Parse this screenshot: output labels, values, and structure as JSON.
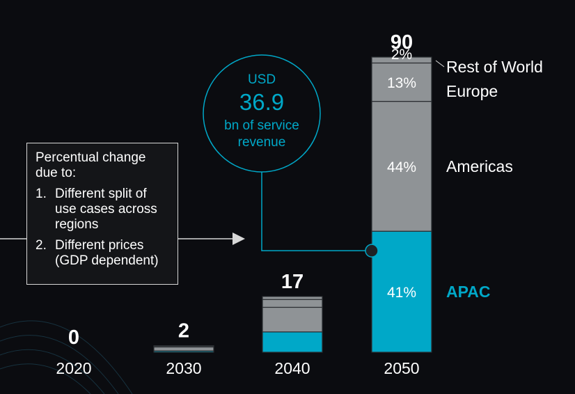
{
  "chart_data": {
    "type": "bar",
    "stacked": true,
    "categories": [
      "2020",
      "2030",
      "2040",
      "2050"
    ],
    "totals": [
      0,
      2,
      17,
      90
    ],
    "series": [
      {
        "name": "APAC",
        "color": "#00a8c8",
        "values": [
          0,
          0.4,
          6.2,
          36.9
        ]
      },
      {
        "name": "Americas",
        "color": "#8f9396",
        "values": [
          0,
          1.2,
          7.5,
          39.6
        ]
      },
      {
        "name": "Europe",
        "color": "#8f9396",
        "values": [
          0,
          0.3,
          2.4,
          11.7
        ]
      },
      {
        "name": "Rest of World",
        "color": "#8f9396",
        "values": [
          0,
          0.1,
          0.9,
          1.8
        ]
      }
    ],
    "segment_labels_2050": [
      "41%",
      "44%",
      "13%",
      "2%"
    ],
    "legend": [
      "APAC",
      "Americas",
      "Europe",
      "Rest of World"
    ],
    "ylim": [
      0,
      90
    ],
    "title": "",
    "xlabel": "",
    "ylabel": ""
  },
  "callout": {
    "currency": "USD",
    "value": "36.9",
    "line1": "bn of service",
    "line2": "revenue"
  },
  "note": {
    "title": "Percentual change due to:",
    "items": [
      {
        "num": "1.",
        "text": "Different split of use cases across regions"
      },
      {
        "num": "2.",
        "text": "Different prices (GDP dependent)"
      }
    ]
  },
  "colors": {
    "accent": "#00a8c8",
    "gray": "#8f9396",
    "background": "#0b0c10",
    "text": "#ffffff"
  }
}
